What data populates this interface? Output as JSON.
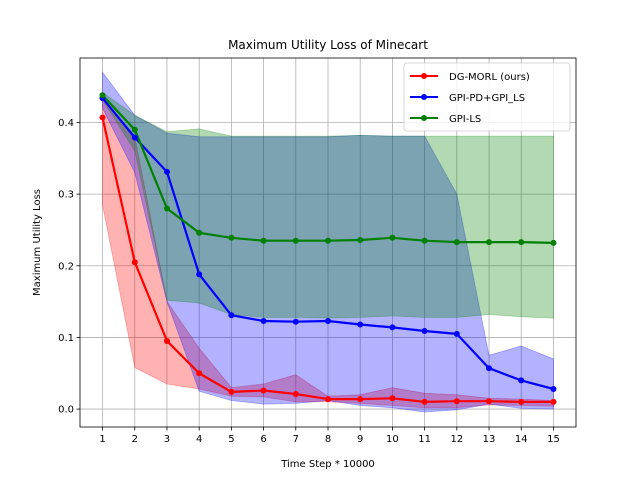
{
  "chart_data": {
    "type": "line",
    "title": "Maximum Utility Loss of Minecart",
    "xlabel": "Time Step * 10000",
    "ylabel": "Maximum Utility Loss",
    "x": [
      1,
      2,
      3,
      4,
      5,
      6,
      7,
      8,
      9,
      10,
      11,
      12,
      13,
      14,
      15
    ],
    "xlim": [
      0.3,
      15.7
    ],
    "ylim": [
      -0.025,
      0.49
    ],
    "yticks": [
      "0.0",
      "0.1",
      "0.2",
      "0.3",
      "0.4"
    ],
    "grid": true,
    "legend_position": "top-right",
    "series": [
      {
        "name": "DG-MORL (ours)",
        "color": "#ff0000",
        "values": [
          0.407,
          0.205,
          0.095,
          0.05,
          0.024,
          0.026,
          0.021,
          0.014,
          0.014,
          0.015,
          0.01,
          0.011,
          0.011,
          0.01,
          0.01
        ],
        "upper": [
          0.435,
          0.38,
          0.15,
          0.085,
          0.03,
          0.035,
          0.048,
          0.018,
          0.02,
          0.03,
          0.022,
          0.02,
          0.015,
          0.014,
          0.012
        ],
        "lower": [
          0.285,
          0.058,
          0.035,
          0.028,
          0.018,
          0.017,
          0.01,
          0.01,
          0.008,
          0.005,
          0.002,
          0.002,
          0.006,
          0.005,
          0.004
        ]
      },
      {
        "name": "GPI-PD+GPI_LS",
        "color": "#0000ff",
        "values": [
          0.434,
          0.379,
          0.331,
          0.188,
          0.131,
          0.123,
          0.122,
          0.123,
          0.118,
          0.114,
          0.109,
          0.105,
          0.057,
          0.04,
          0.028
        ],
        "upper": [
          0.47,
          0.41,
          0.385,
          0.38,
          0.38,
          0.38,
          0.38,
          0.38,
          0.382,
          0.381,
          0.381,
          0.3,
          0.075,
          0.088,
          0.07
        ],
        "lower": [
          0.42,
          0.33,
          0.15,
          0.025,
          0.012,
          0.007,
          0.008,
          0.012,
          0.005,
          0.002,
          -0.004,
          -0.001,
          0.007,
          0.001,
          0.0
        ]
      },
      {
        "name": "GPI-LS",
        "color": "#008000",
        "values": [
          0.438,
          0.39,
          0.28,
          0.246,
          0.239,
          0.235,
          0.235,
          0.235,
          0.236,
          0.239,
          0.235,
          0.233,
          0.233,
          0.233,
          0.232
        ],
        "upper": [
          0.442,
          0.41,
          0.387,
          0.391,
          0.381,
          0.381,
          0.381,
          0.381,
          0.382,
          0.381,
          0.381,
          0.381,
          0.381,
          0.381,
          0.381
        ],
        "lower": [
          0.432,
          0.36,
          0.152,
          0.148,
          0.132,
          0.128,
          0.128,
          0.127,
          0.128,
          0.13,
          0.128,
          0.128,
          0.132,
          0.129,
          0.127
        ]
      }
    ]
  }
}
